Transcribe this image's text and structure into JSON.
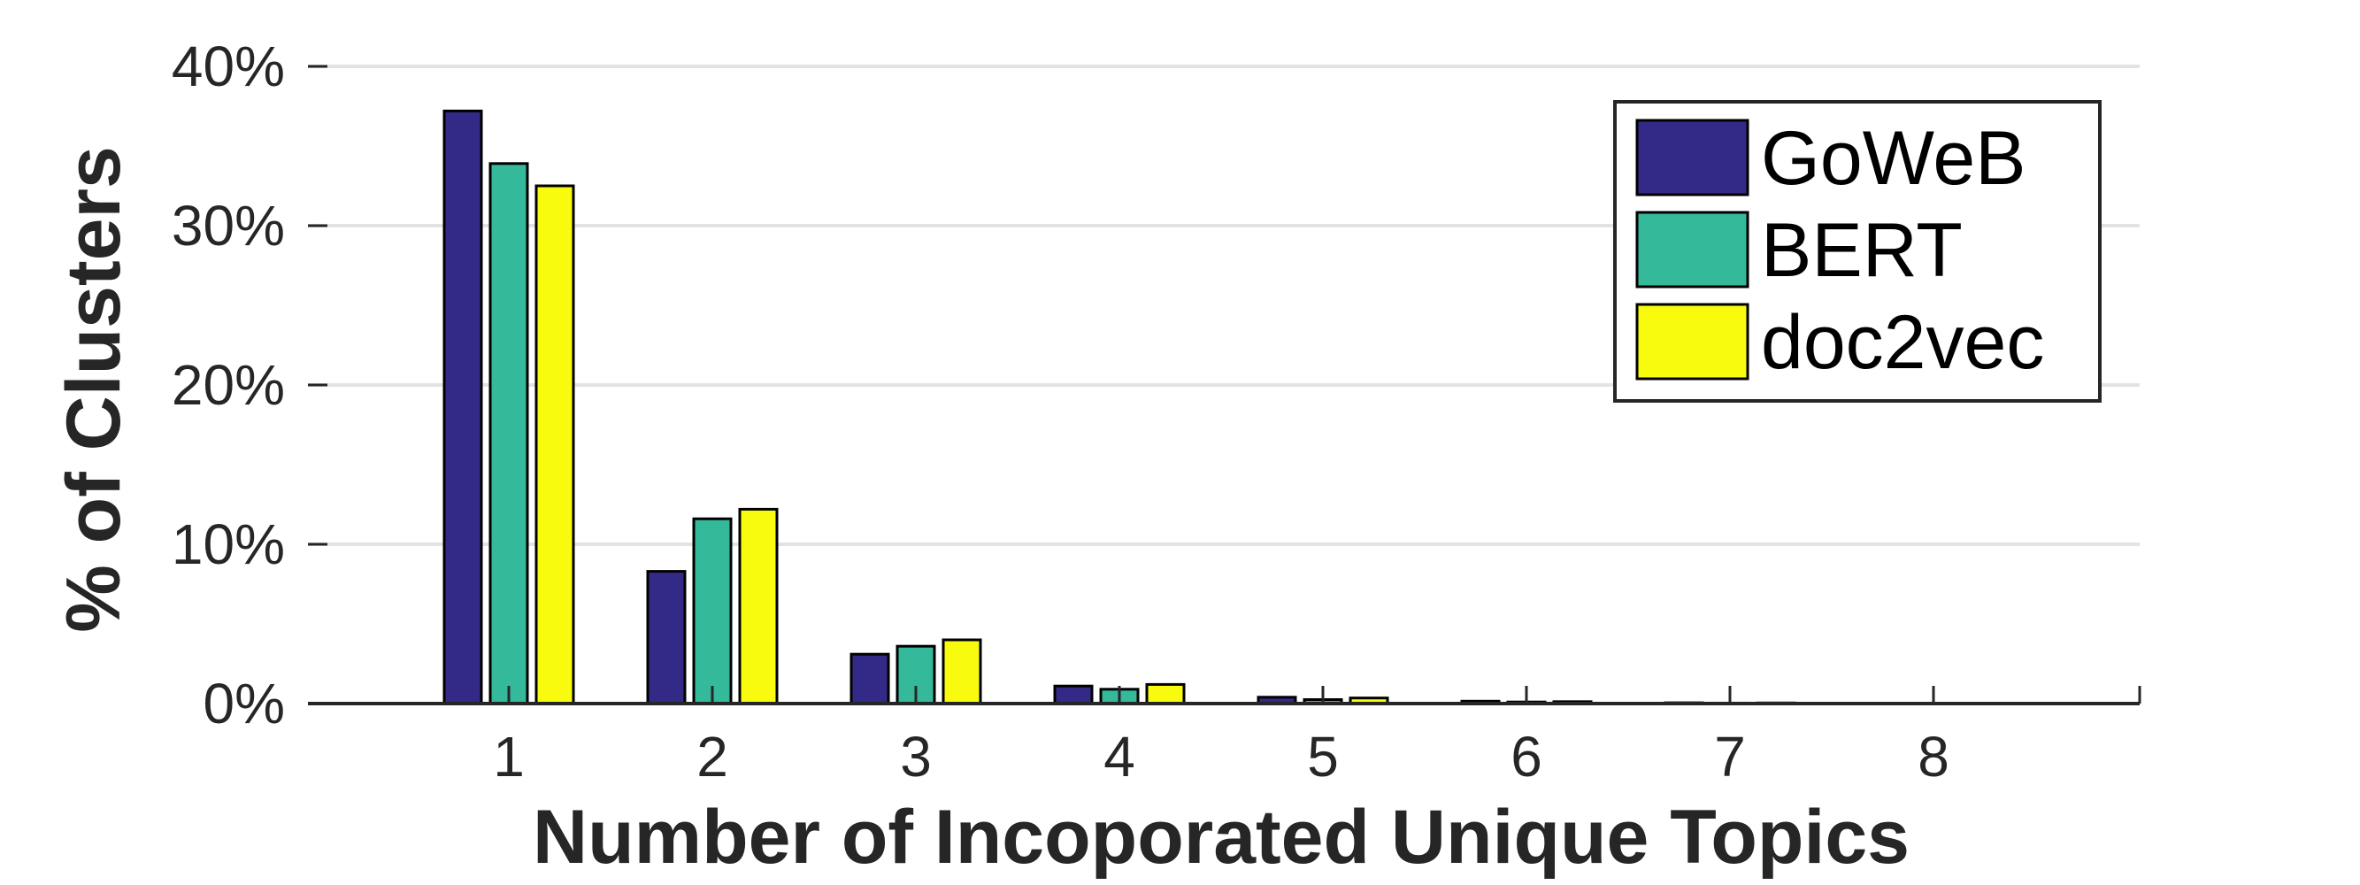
{
  "chart_data": {
    "type": "bar",
    "xlabel": "Number of Incoporated Unique Topics",
    "ylabel": "% of Clusters",
    "categories": [
      "1",
      "2",
      "3",
      "4",
      "5",
      "6",
      "7",
      "8"
    ],
    "ylim": [
      0,
      40
    ],
    "yticks": [
      "0%",
      "10%",
      "20%",
      "30%",
      "40%"
    ],
    "ytick_values": [
      0,
      10,
      20,
      30,
      40
    ],
    "grid": true,
    "legend_position": "top-right",
    "series": [
      {
        "name": "GoWeB",
        "color": "#332a87",
        "values": [
          37.2,
          8.3,
          3.1,
          1.1,
          0.4,
          0.15,
          0.05,
          0.02
        ]
      },
      {
        "name": "BERT",
        "color": "#35b99b",
        "values": [
          33.9,
          11.6,
          3.6,
          0.9,
          0.25,
          0.1,
          0.03,
          0.01
        ]
      },
      {
        "name": "doc2vec",
        "color": "#f9fb0e",
        "values": [
          32.5,
          12.2,
          4.0,
          1.2,
          0.35,
          0.12,
          0.04,
          0.01
        ]
      }
    ]
  }
}
